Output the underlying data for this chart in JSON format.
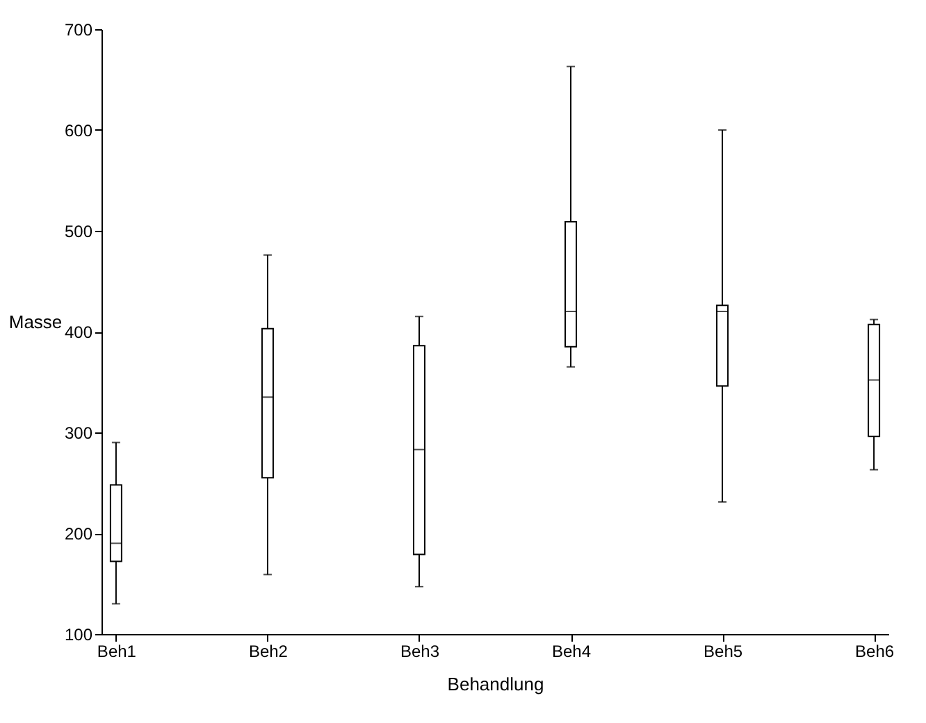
{
  "chart_data": {
    "type": "box",
    "xlabel": "Behandlung",
    "ylabel": "Masse",
    "categories": [
      "Beh1",
      "Beh2",
      "Beh3",
      "Beh4",
      "Beh5",
      "Beh6"
    ],
    "boxes": [
      {
        "low": 130,
        "q1": 172,
        "median": 190,
        "q3": 248,
        "high": 290
      },
      {
        "low": 159,
        "q1": 255,
        "median": 335,
        "q3": 403,
        "high": 476
      },
      {
        "low": 147,
        "q1": 179,
        "median": 283,
        "q3": 386,
        "high": 415
      },
      {
        "low": 365,
        "q1": 385,
        "median": 420,
        "q3": 509,
        "high": 663
      },
      {
        "low": 231,
        "q1": 346,
        "median": 420,
        "q3": 426,
        "high": 600
      },
      {
        "low": 263,
        "q1": 296,
        "median": 352,
        "q3": 407,
        "high": 412
      }
    ],
    "ylim": [
      100,
      700
    ],
    "yticks": [
      100,
      200,
      300,
      400,
      500,
      600,
      700
    ],
    "grid": false
  }
}
